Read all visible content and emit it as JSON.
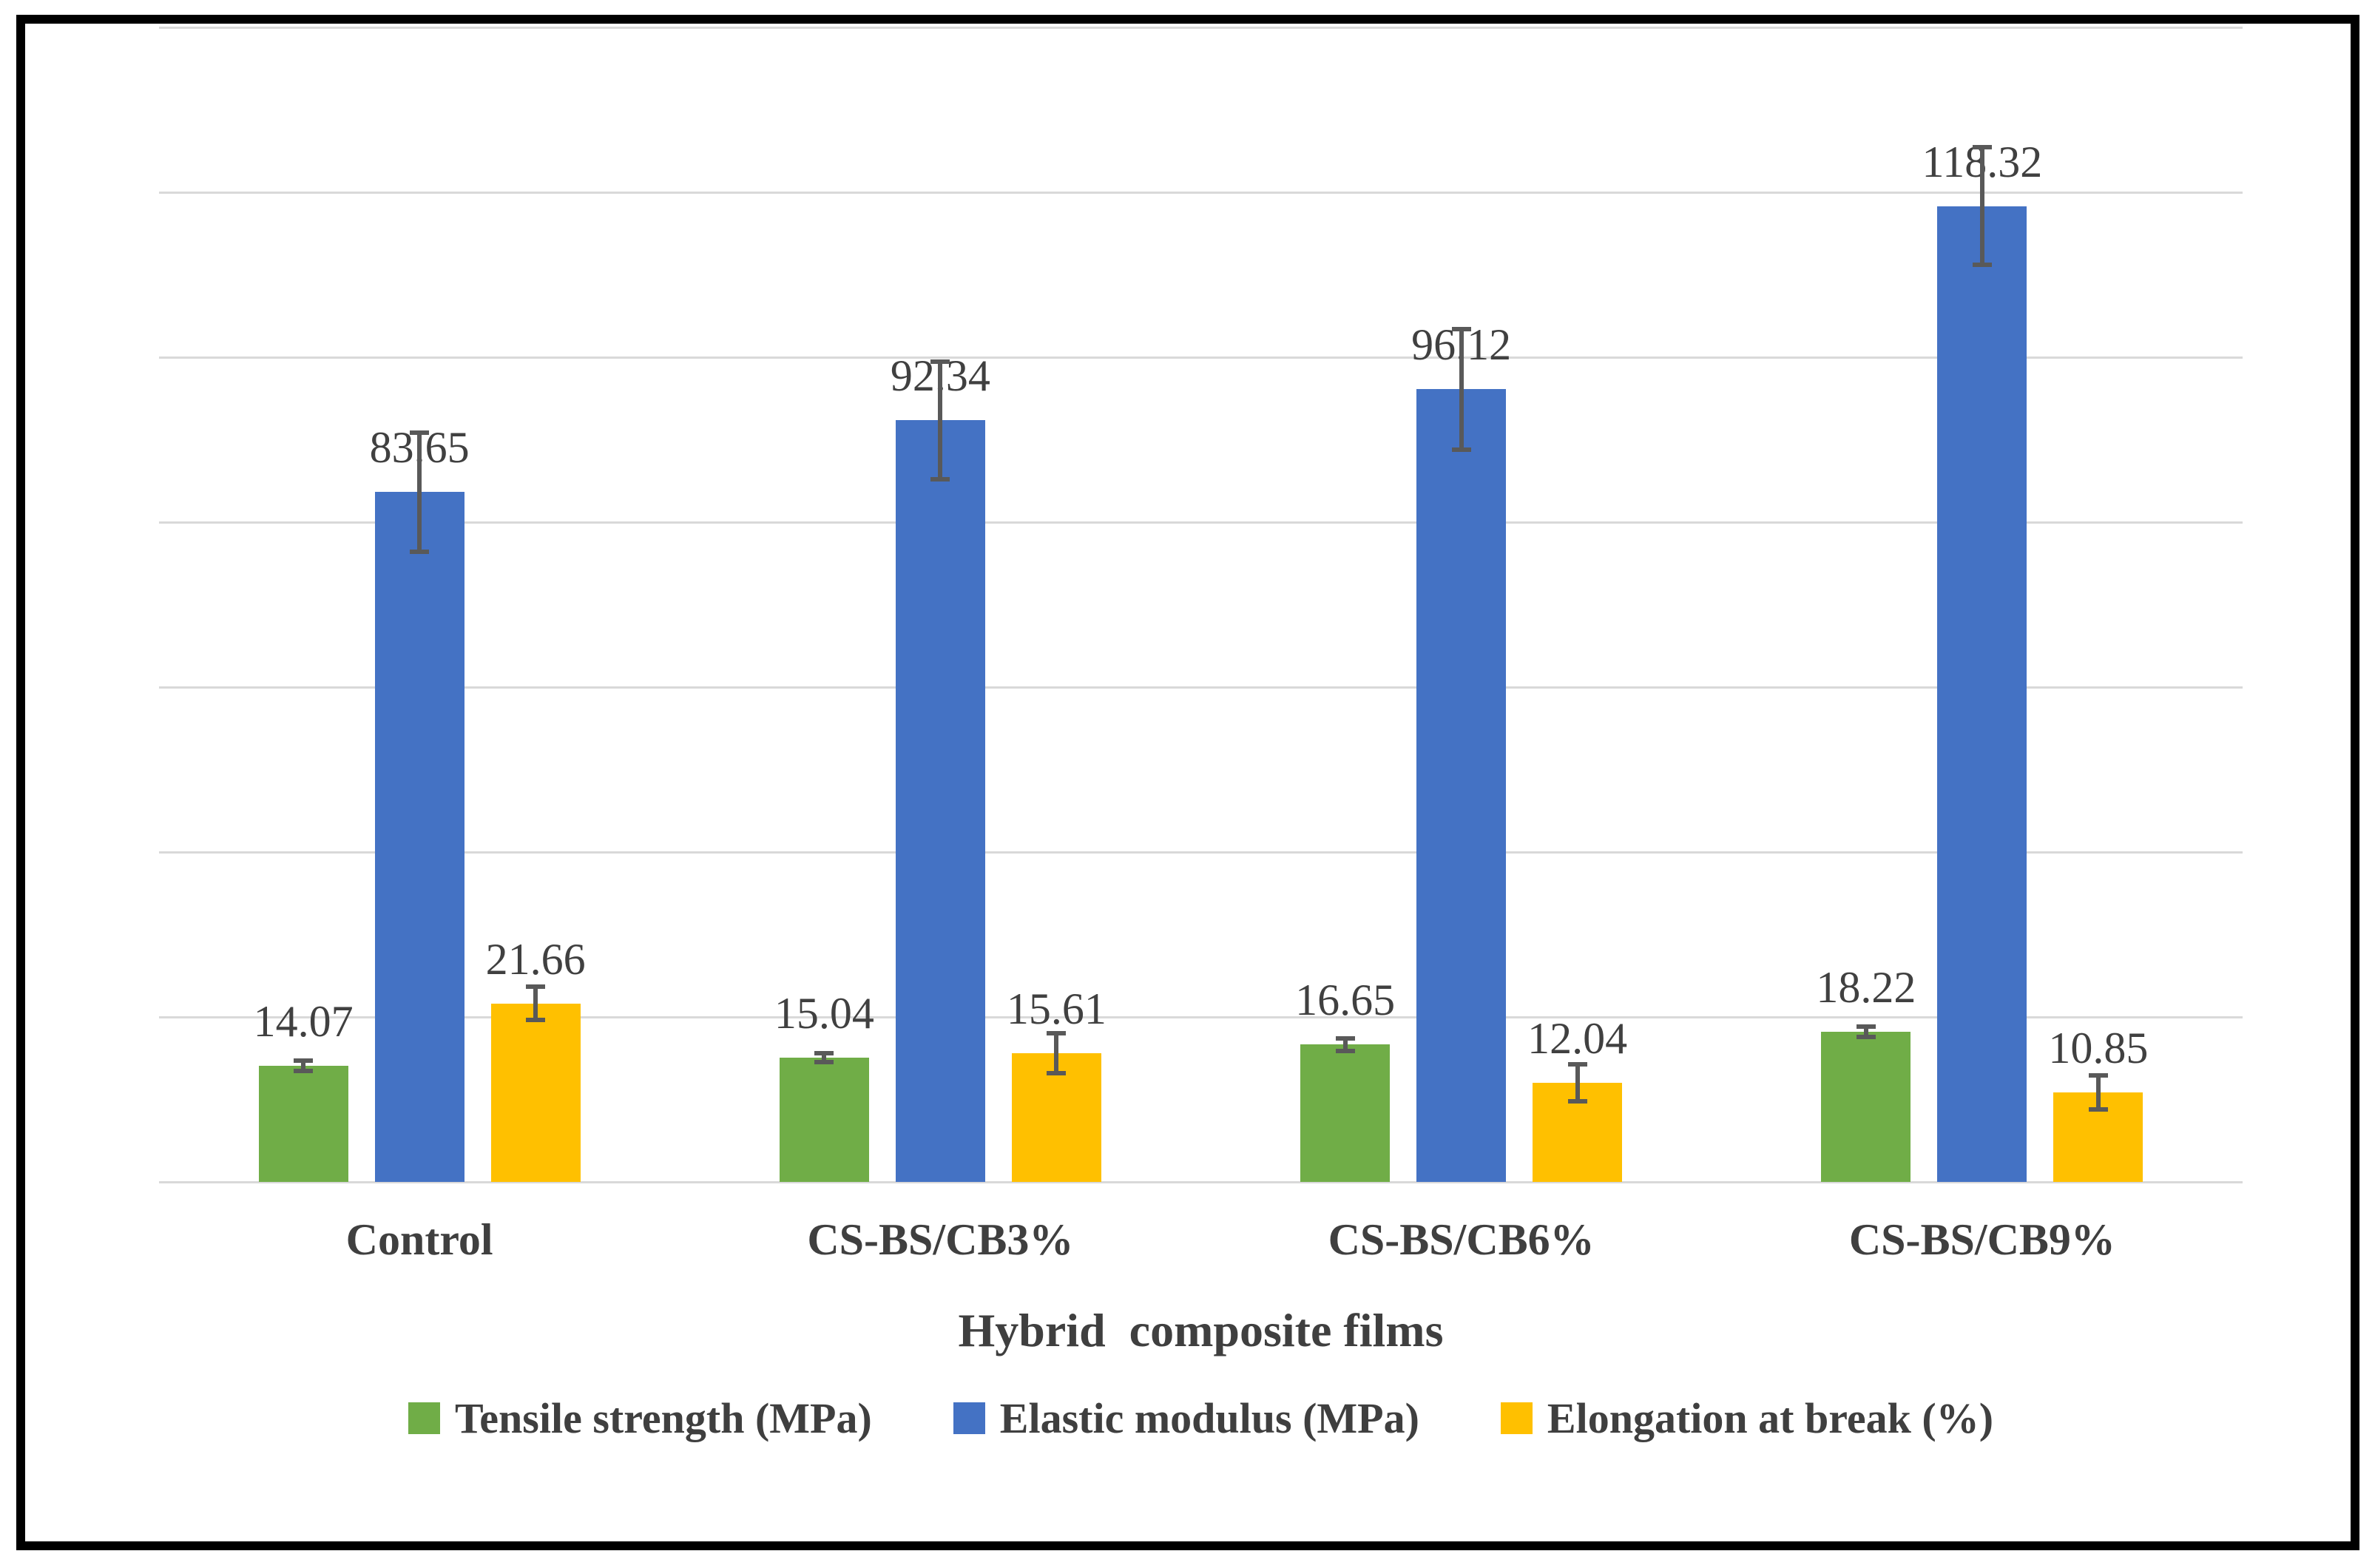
{
  "chart_data": {
    "type": "bar",
    "title": "",
    "xlabel": "Hybrid  composite films",
    "ylabel": "",
    "categories": [
      "Control",
      "CS-BS/CB3%",
      "CS-BS/CB6%",
      "CS-BS/CB9%"
    ],
    "series": [
      {
        "name": "Tensile strength (MPa)",
        "color": "#70AD47",
        "values": [
          14.07,
          15.04,
          16.65,
          18.22
        ],
        "errors": [
          0.9,
          0.8,
          1.0,
          0.9
        ]
      },
      {
        "name": "Elastic modulus (MPa)",
        "color": "#4472C4",
        "values": [
          83.65,
          92.34,
          96.12,
          118.32
        ],
        "errors": [
          7.5,
          7.4,
          7.6,
          7.4
        ]
      },
      {
        "name": "Elongation at break (%)",
        "color": "#FFC000",
        "values": [
          21.66,
          15.61,
          12.04,
          10.85
        ],
        "errors": [
          2.3,
          2.7,
          2.5,
          2.3
        ]
      }
    ],
    "data_labels": [
      [
        "14.07",
        "15.04",
        "16.65",
        "18.22"
      ],
      [
        "83.65",
        "92.34",
        "96.12",
        "118.32"
      ],
      [
        "21.66",
        "15.61",
        "12.04",
        "10.85"
      ]
    ],
    "ylim": [
      0,
      140
    ],
    "y_major_unit": 20,
    "grid": "horizontal",
    "y_tick_labels_visible": false,
    "legend_position": "bottom"
  },
  "styles": {
    "gridline_color": "#d9d9d9",
    "error_bar_color": "#595959",
    "data_label_color": "#404040",
    "text_color": "#3f3f3f",
    "frame_border_color": "#000000",
    "background": "#ffffff"
  }
}
